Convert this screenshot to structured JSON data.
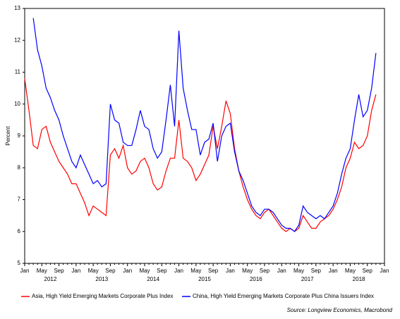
{
  "chart_data": {
    "type": "line",
    "y_label": "Percent",
    "source": "Source: Longview Economics, Macrobond",
    "categories": [
      "Jan",
      null,
      null,
      null,
      "May",
      null,
      null,
      null,
      "Sep",
      null,
      null,
      null,
      "Jan",
      null,
      null,
      null,
      "May",
      null,
      null,
      null,
      "Sep",
      null,
      null,
      null,
      "Jan",
      null,
      null,
      null,
      "May",
      null,
      null,
      null,
      "Sep",
      null,
      null,
      null,
      "Jan",
      null,
      null,
      null,
      "May",
      null,
      null,
      null,
      "Sep",
      null,
      null,
      null,
      "Jan",
      null,
      null,
      null,
      "May",
      null,
      null,
      null,
      "Sep",
      null,
      null,
      null,
      "Jan",
      null,
      null,
      null,
      "May",
      null,
      null,
      null,
      "Sep",
      null,
      null,
      null,
      "Jan",
      null,
      null,
      null,
      "May",
      null,
      null,
      null,
      "Sep",
      null,
      null,
      null,
      "Jan"
    ],
    "years": [
      "2012",
      "2013",
      "2014",
      "2015",
      "2016",
      "2017",
      "2018"
    ],
    "ylim": [
      5,
      13
    ],
    "yticks": [
      5,
      6,
      7,
      8,
      9,
      10,
      11,
      12,
      13
    ],
    "series": [
      {
        "name": "Asia, High Yield Emerging Markets Corporate Plus Index",
        "color": "#ff0000",
        "values": [
          10.8,
          9.8,
          8.7,
          8.6,
          9.2,
          9.3,
          8.8,
          8.5,
          8.2,
          8.0,
          7.8,
          7.5,
          7.5,
          7.2,
          6.9,
          6.5,
          6.8,
          6.7,
          6.6,
          6.5,
          8.4,
          8.6,
          8.3,
          8.7,
          8.0,
          7.8,
          7.9,
          8.2,
          8.3,
          8.0,
          7.5,
          7.3,
          7.4,
          7.9,
          8.3,
          8.3,
          9.5,
          8.3,
          8.2,
          8.0,
          7.6,
          7.8,
          8.1,
          8.4,
          9.3,
          8.6,
          9.3,
          10.1,
          9.7,
          8.6,
          7.9,
          7.4,
          7.0,
          6.7,
          6.5,
          6.4,
          6.6,
          6.7,
          6.5,
          6.3,
          6.1,
          6.0,
          6.1,
          6.0,
          6.1,
          6.5,
          6.3,
          6.1,
          6.1,
          6.3,
          6.4,
          6.5,
          6.7,
          7.0,
          7.4,
          8.0,
          8.3,
          8.8,
          8.6,
          8.7,
          9.0,
          9.8,
          10.3,
          null,
          null
        ]
      },
      {
        "name": "China, High Yield Emerging Markets Corporate Plus China Issuers Index",
        "color": "#0000ff",
        "values": [
          null,
          null,
          12.7,
          11.7,
          11.2,
          10.5,
          10.2,
          9.8,
          9.5,
          9.0,
          8.6,
          8.2,
          8.0,
          8.4,
          8.1,
          7.8,
          7.5,
          7.6,
          7.4,
          7.5,
          10.0,
          9.5,
          9.4,
          8.8,
          8.7,
          8.7,
          9.2,
          9.8,
          9.3,
          9.2,
          8.6,
          8.3,
          8.5,
          9.5,
          10.6,
          9.3,
          12.3,
          10.5,
          9.8,
          9.2,
          9.2,
          8.4,
          8.8,
          8.9,
          9.4,
          8.2,
          9.0,
          9.3,
          9.4,
          8.5,
          7.9,
          7.6,
          7.2,
          6.8,
          6.6,
          6.5,
          6.7,
          6.7,
          6.6,
          6.4,
          6.2,
          6.1,
          6.1,
          6.0,
          6.2,
          6.8,
          6.6,
          6.5,
          6.4,
          6.5,
          6.4,
          6.6,
          6.8,
          7.2,
          7.8,
          8.3,
          8.6,
          9.5,
          10.3,
          9.6,
          9.8,
          10.5,
          11.6,
          null,
          null
        ]
      }
    ]
  }
}
